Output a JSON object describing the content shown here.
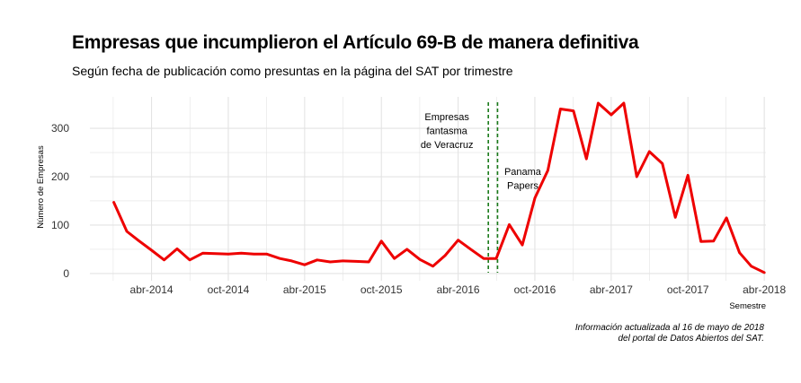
{
  "title": "Empresas que incumplieron el Artículo 69-B de manera definitiva",
  "subtitle": "Según fecha de publicación como presuntas en la página del SAT por trimestre",
  "caption": {
    "line1": "Información actualizada al 16 de mayo de 2018",
    "line2": "del portal de Datos Abiertos del SAT."
  },
  "colors": {
    "line": "#ee0000",
    "vline": "#1a7a1a",
    "grid": "#e3e3e3"
  },
  "chart_data": {
    "type": "line",
    "xlabel": "Semestre",
    "ylabel": "Número de Empresas",
    "ylim": [
      -15,
      365
    ],
    "yticks": [
      0,
      100,
      200,
      300
    ],
    "xlim": [
      "2013-11-05",
      "2018-04-05"
    ],
    "xticks": [
      {
        "date": "2014-04-01",
        "label": "abr-2014"
      },
      {
        "date": "2014-10-01",
        "label": "oct-2014"
      },
      {
        "date": "2015-04-01",
        "label": "abr-2015"
      },
      {
        "date": "2015-10-01",
        "label": "oct-2015"
      },
      {
        "date": "2016-04-01",
        "label": "abr-2016"
      },
      {
        "date": "2016-10-01",
        "label": "oct-2016"
      },
      {
        "date": "2017-04-01",
        "label": "abr-2017"
      },
      {
        "date": "2017-10-01",
        "label": "oct-2017"
      },
      {
        "date": "2018-04-01",
        "label": "abr-2018"
      }
    ],
    "grid": true,
    "series": [
      {
        "points": [
          [
            "2014-01-01",
            147
          ],
          [
            "2014-02-01",
            87
          ],
          [
            "2014-03-01",
            68
          ],
          [
            "2014-04-01",
            48
          ],
          [
            "2014-05-01",
            28
          ],
          [
            "2014-06-01",
            51
          ],
          [
            "2014-07-01",
            28
          ],
          [
            "2014-08-01",
            42
          ],
          [
            "2014-09-01",
            41
          ],
          [
            "2014-10-01",
            40
          ],
          [
            "2014-11-01",
            42
          ],
          [
            "2014-12-01",
            40
          ],
          [
            "2015-01-01",
            40
          ],
          [
            "2015-02-01",
            31
          ],
          [
            "2015-03-01",
            26
          ],
          [
            "2015-04-01",
            18
          ],
          [
            "2015-05-01",
            28
          ],
          [
            "2015-06-01",
            24
          ],
          [
            "2015-07-01",
            26
          ],
          [
            "2015-08-01",
            25
          ],
          [
            "2015-09-01",
            24
          ],
          [
            "2015-10-01",
            67
          ],
          [
            "2015-11-01",
            31
          ],
          [
            "2015-12-01",
            50
          ],
          [
            "2016-01-01",
            29
          ],
          [
            "2016-02-01",
            15
          ],
          [
            "2016-03-01",
            37
          ],
          [
            "2016-04-01",
            69
          ],
          [
            "2016-05-01",
            50
          ],
          [
            "2016-06-01",
            31
          ],
          [
            "2016-07-01",
            31
          ],
          [
            "2016-08-01",
            101
          ],
          [
            "2016-09-01",
            59
          ],
          [
            "2016-10-01",
            156
          ],
          [
            "2016-11-01",
            213
          ],
          [
            "2016-12-01",
            340
          ],
          [
            "2017-01-01",
            336
          ],
          [
            "2017-02-01",
            237
          ],
          [
            "2017-03-01",
            352
          ],
          [
            "2017-04-01",
            328
          ],
          [
            "2017-05-01",
            352
          ],
          [
            "2017-06-01",
            200
          ],
          [
            "2017-07-01",
            252
          ],
          [
            "2017-08-01",
            227
          ],
          [
            "2017-09-01",
            116
          ],
          [
            "2017-10-01",
            203
          ],
          [
            "2017-11-01",
            66
          ],
          [
            "2017-12-01",
            67
          ],
          [
            "2018-01-01",
            115
          ],
          [
            "2018-02-01",
            43
          ],
          [
            "2018-03-01",
            15
          ],
          [
            "2018-04-01",
            2
          ]
        ]
      }
    ],
    "vlines": [
      "2016-06-12",
      "2016-07-04"
    ],
    "annotations": [
      {
        "lines": [
          "Empresas",
          "fantasma",
          "de Veracruz"
        ]
      },
      {
        "lines": [
          "Panama",
          "Papers"
        ]
      }
    ]
  }
}
